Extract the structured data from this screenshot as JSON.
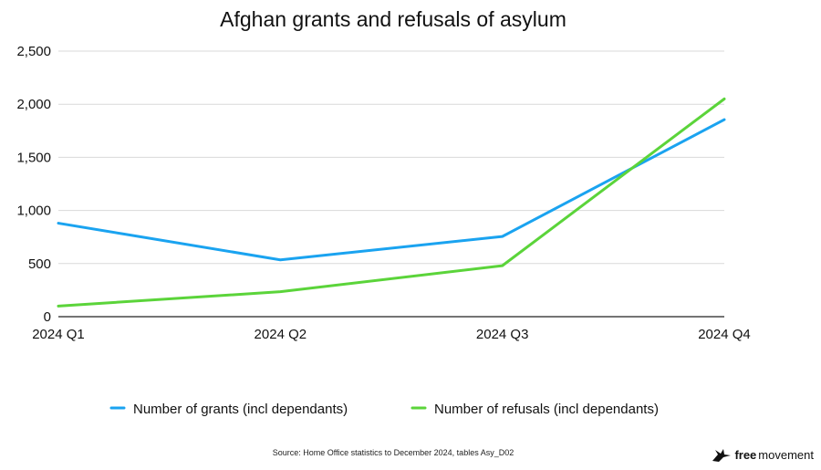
{
  "chart_data": {
    "type": "line",
    "title": "Afghan grants and refusals of asylum",
    "categories": [
      "2024 Q1",
      "2024 Q2",
      "2024 Q3",
      "2024 Q4"
    ],
    "series": [
      {
        "name": "Number of grants (incl dependants)",
        "color": "#1aa3f0",
        "values": [
          880,
          535,
          755,
          1855
        ]
      },
      {
        "name": "Number of refusals (incl dependants)",
        "color": "#5bd43a",
        "values": [
          100,
          235,
          480,
          2050
        ]
      }
    ],
    "yticks": [
      "0",
      "500",
      "1,000",
      "1,500",
      "2,000",
      "2,500"
    ],
    "ylim": [
      0,
      2500
    ],
    "xlabel": "",
    "ylabel": "",
    "legend_position": "bottom"
  },
  "footer": {
    "source": "Source: Home Office statistics to December 2024, tables Asy_D02",
    "brand_bold": "free",
    "brand_light": "movement"
  }
}
